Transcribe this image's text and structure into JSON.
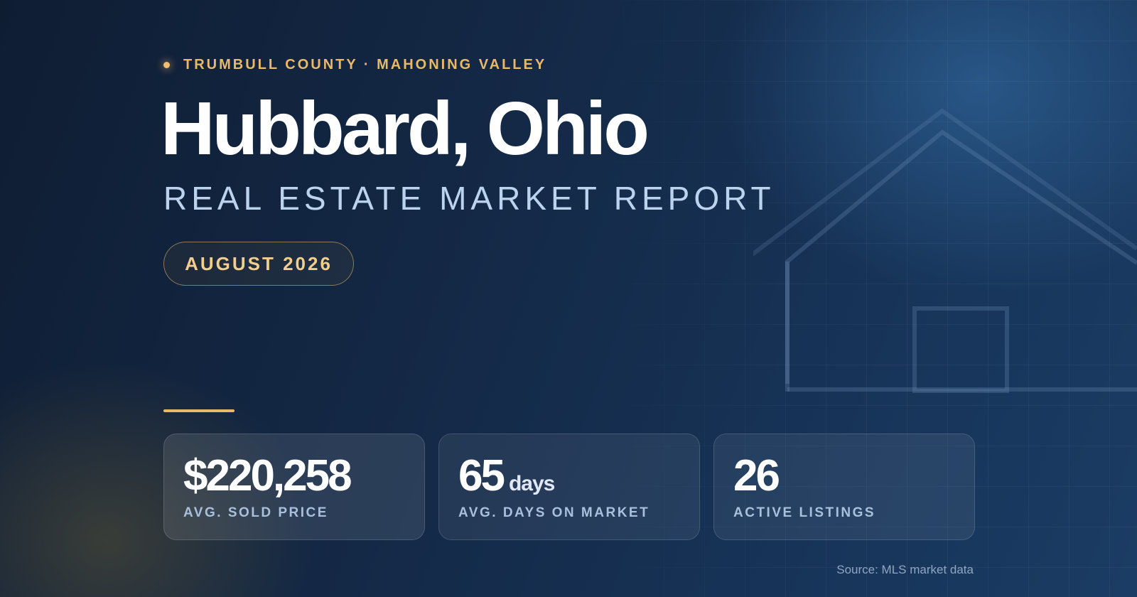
{
  "header": {
    "eyebrow": "TRUMBULL COUNTY · MAHONING VALLEY",
    "title": "Hubbard, Ohio",
    "subtitle": "REAL ESTATE MARKET REPORT",
    "date": "AUGUST 2026"
  },
  "stats": [
    {
      "value": "$220,258",
      "unit": "",
      "label": "AVG. SOLD PRICE"
    },
    {
      "value": "65",
      "unit": "days",
      "label": "AVG. DAYS ON MARKET"
    },
    {
      "value": "26",
      "unit": "",
      "label": "ACTIVE LISTINGS"
    }
  ],
  "footer": {
    "source": "Source: MLS market data"
  },
  "colors": {
    "accent_gold": "#e9b96a",
    "title_white": "#ffffff",
    "subtitle_blue": "#bcd3ee",
    "background_navy": "#12223d"
  },
  "icons": {
    "decor": "house-outline-icon",
    "eyebrow": "dot-icon"
  }
}
